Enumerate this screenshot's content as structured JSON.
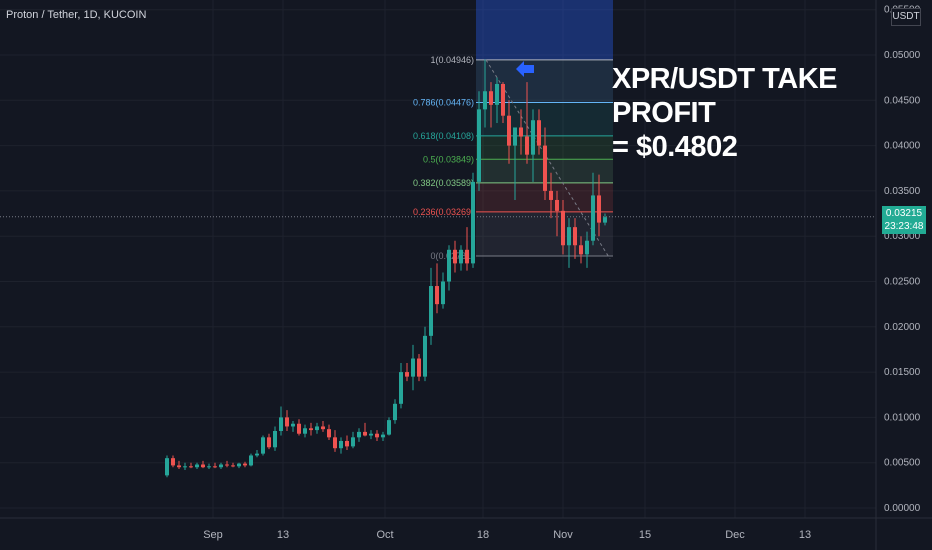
{
  "header": {
    "title": "Proton / Tether, 1D, KUCOIN"
  },
  "headline": {
    "line1": "XPR/USDT TAKE PROFIT",
    "line2": "= $0.4802"
  },
  "price_axis": {
    "unit": "USDT"
  },
  "last_price": {
    "value": "0.03215",
    "countdown": "23:23:48"
  },
  "colors": {
    "background": "#131722",
    "up": "#26a69a",
    "down": "#ef5350",
    "grid": "#1e222d",
    "projection_blue": "#2962ff"
  },
  "chart_data": {
    "type": "candlestick",
    "title": "",
    "ylim": [
      0,
      0.0555
    ],
    "y_ticks": [
      "0.05500",
      "0.05000",
      "0.04500",
      "0.04000",
      "0.03500",
      "0.03000",
      "0.02500",
      "0.02000",
      "0.01500",
      "0.01000",
      "0.00500",
      "0.00000"
    ],
    "x_ticks": [
      "Sep",
      "13",
      "Oct",
      "18",
      "Nov",
      "15",
      "Dec",
      "13"
    ],
    "candles_ohlc": [
      [
        0.0036,
        0.0058,
        0.0034,
        0.0055
      ],
      [
        0.0055,
        0.0058,
        0.0045,
        0.0047
      ],
      [
        0.0047,
        0.0052,
        0.0043,
        0.0045
      ],
      [
        0.0045,
        0.005,
        0.0042,
        0.0046
      ],
      [
        0.0046,
        0.005,
        0.0044,
        0.0045
      ],
      [
        0.0045,
        0.005,
        0.0043,
        0.0048
      ],
      [
        0.0048,
        0.0052,
        0.0044,
        0.0045
      ],
      [
        0.0045,
        0.0049,
        0.0043,
        0.0046
      ],
      [
        0.0046,
        0.005,
        0.0044,
        0.0045
      ],
      [
        0.0045,
        0.005,
        0.0043,
        0.0048
      ],
      [
        0.0048,
        0.0052,
        0.0045,
        0.0047
      ],
      [
        0.0047,
        0.005,
        0.0045,
        0.0046
      ],
      [
        0.0046,
        0.005,
        0.0044,
        0.0049
      ],
      [
        0.0049,
        0.0051,
        0.0045,
        0.0047
      ],
      [
        0.0047,
        0.006,
        0.0046,
        0.0058
      ],
      [
        0.0058,
        0.0064,
        0.0056,
        0.006
      ],
      [
        0.006,
        0.008,
        0.0058,
        0.0078
      ],
      [
        0.0078,
        0.0082,
        0.0065,
        0.0067
      ],
      [
        0.0067,
        0.009,
        0.0063,
        0.0085
      ],
      [
        0.0085,
        0.0112,
        0.008,
        0.01
      ],
      [
        0.01,
        0.0108,
        0.0085,
        0.009
      ],
      [
        0.009,
        0.0096,
        0.0084,
        0.0093
      ],
      [
        0.0093,
        0.0098,
        0.008,
        0.0082
      ],
      [
        0.0082,
        0.0092,
        0.0078,
        0.0088
      ],
      [
        0.0088,
        0.0094,
        0.008,
        0.0086
      ],
      [
        0.0086,
        0.0094,
        0.0082,
        0.009
      ],
      [
        0.009,
        0.0096,
        0.0084,
        0.0087
      ],
      [
        0.0087,
        0.0092,
        0.0075,
        0.0078
      ],
      [
        0.0078,
        0.0086,
        0.0062,
        0.0066
      ],
      [
        0.0066,
        0.0078,
        0.006,
        0.0074
      ],
      [
        0.0074,
        0.008,
        0.0064,
        0.0068
      ],
      [
        0.0068,
        0.0084,
        0.0066,
        0.0078
      ],
      [
        0.0078,
        0.0088,
        0.0073,
        0.0084
      ],
      [
        0.0084,
        0.0094,
        0.0079,
        0.008
      ],
      [
        0.008,
        0.0086,
        0.0076,
        0.0082
      ],
      [
        0.0082,
        0.0086,
        0.0074,
        0.0078
      ],
      [
        0.0078,
        0.0084,
        0.0074,
        0.0081
      ],
      [
        0.0081,
        0.01,
        0.008,
        0.0097
      ],
      [
        0.0097,
        0.012,
        0.0093,
        0.0115
      ],
      [
        0.0115,
        0.016,
        0.011,
        0.015
      ],
      [
        0.015,
        0.016,
        0.014,
        0.0145
      ],
      [
        0.0145,
        0.018,
        0.013,
        0.0165
      ],
      [
        0.0165,
        0.017,
        0.014,
        0.0145
      ],
      [
        0.0145,
        0.02,
        0.014,
        0.019
      ],
      [
        0.019,
        0.0265,
        0.018,
        0.0245
      ],
      [
        0.0245,
        0.027,
        0.0215,
        0.0225
      ],
      [
        0.0225,
        0.026,
        0.022,
        0.025
      ],
      [
        0.025,
        0.029,
        0.024,
        0.0285
      ],
      [
        0.0285,
        0.0295,
        0.026,
        0.027
      ],
      [
        0.027,
        0.029,
        0.0262,
        0.0285
      ],
      [
        0.0285,
        0.031,
        0.0262,
        0.027
      ],
      [
        0.027,
        0.037,
        0.0265,
        0.036
      ],
      [
        0.036,
        0.046,
        0.035,
        0.044
      ],
      [
        0.044,
        0.0495,
        0.042,
        0.046
      ],
      [
        0.046,
        0.047,
        0.042,
        0.0445
      ],
      [
        0.0445,
        0.0475,
        0.0425,
        0.0468
      ],
      [
        0.0468,
        0.047,
        0.0425,
        0.0433
      ],
      [
        0.0433,
        0.045,
        0.038,
        0.04
      ],
      [
        0.04,
        0.042,
        0.034,
        0.042
      ],
      [
        0.042,
        0.044,
        0.039,
        0.041
      ],
      [
        0.041,
        0.047,
        0.038,
        0.039
      ],
      [
        0.039,
        0.044,
        0.036,
        0.0428
      ],
      [
        0.0428,
        0.044,
        0.039,
        0.04
      ],
      [
        0.04,
        0.042,
        0.034,
        0.035
      ],
      [
        0.035,
        0.037,
        0.032,
        0.034
      ],
      [
        0.034,
        0.035,
        0.03,
        0.0328
      ],
      [
        0.0328,
        0.034,
        0.028,
        0.029
      ],
      [
        0.029,
        0.032,
        0.0265,
        0.031
      ],
      [
        0.031,
        0.032,
        0.0275,
        0.029
      ],
      [
        0.029,
        0.03,
        0.027,
        0.028
      ],
      [
        0.028,
        0.0305,
        0.0265,
        0.0295
      ],
      [
        0.0295,
        0.037,
        0.029,
        0.0345
      ],
      [
        0.0345,
        0.0368,
        0.03,
        0.0315
      ],
      [
        0.0315,
        0.0325,
        0.0312,
        0.0321
      ]
    ],
    "fib_levels": [
      {
        "ratio": "1",
        "price": "0.04946",
        "value": 0.04946,
        "color": "#b2b5be"
      },
      {
        "ratio": "0.786",
        "price": "0.04476",
        "value": 0.04476,
        "color": "#64b5f6"
      },
      {
        "ratio": "0.618",
        "price": "0.04108",
        "value": 0.04108,
        "color": "#26a69a"
      },
      {
        "ratio": "0.5",
        "price": "0.03849",
        "value": 0.03849,
        "color": "#4caf50"
      },
      {
        "ratio": "0.382",
        "price": "0.03589",
        "value": 0.03589,
        "color": "#81c784"
      },
      {
        "ratio": "0.236",
        "price": "0.03269",
        "value": 0.03269,
        "color": "#ef5350"
      },
      {
        "ratio": "0",
        "price": "0.02781",
        "value": 0.02781,
        "color": "#787b86"
      }
    ]
  }
}
